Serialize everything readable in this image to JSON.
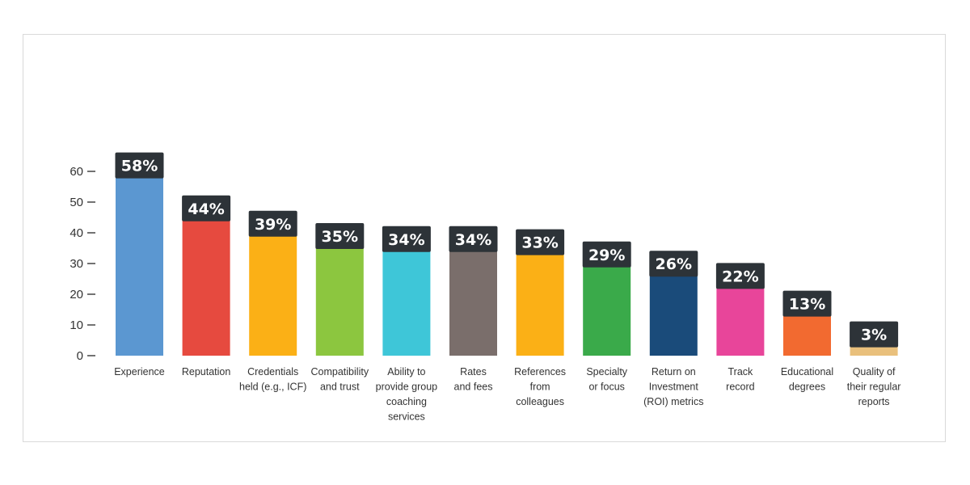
{
  "chart_data": {
    "type": "bar",
    "title": "",
    "xlabel": "",
    "ylabel": "",
    "ylim": [
      0,
      60
    ],
    "yticks": [
      0,
      10,
      20,
      30,
      40,
      50,
      60
    ],
    "grid": false,
    "categories": [
      "Experience",
      "Reputation",
      "Credentials held (e.g., ICF)",
      "Compatibility and trust",
      "Ability to provide group coaching services",
      "Rates and fees",
      "References from colleagues",
      "Specialty or focus",
      "Return on Investment (ROI) metrics",
      "Track record",
      "Educational degrees",
      "Quality of their regular reports"
    ],
    "category_lines": [
      [
        "Experience"
      ],
      [
        "Reputation"
      ],
      [
        "Credentials",
        "held (e.g., ICF)"
      ],
      [
        "Compatibility",
        "and trust"
      ],
      [
        "Ability to",
        "provide group",
        "coaching",
        "services"
      ],
      [
        "Rates",
        "and fees"
      ],
      [
        "References",
        "from",
        "colleagues"
      ],
      [
        "Specialty",
        "or focus"
      ],
      [
        "Return on",
        "Investment",
        "(ROI) metrics"
      ],
      [
        "Track",
        "record"
      ],
      [
        "Educational",
        "degrees"
      ],
      [
        "Quality of",
        "their regular",
        "reports"
      ]
    ],
    "values": [
      58,
      44,
      39,
      35,
      34,
      34,
      33,
      29,
      26,
      22,
      13,
      3
    ],
    "value_labels": [
      "58%",
      "44%",
      "39%",
      "35%",
      "34%",
      "34%",
      "33%",
      "29%",
      "26%",
      "22%",
      "13%",
      "3%"
    ],
    "colors": [
      "#5b97d1",
      "#e64a3f",
      "#fbb016",
      "#8cc63f",
      "#3ec6d8",
      "#7a6e6b",
      "#fbb016",
      "#3aaa4a",
      "#1a4b7a",
      "#e8459a",
      "#f26a30",
      "#e9c07c"
    ],
    "label_bg_color": "#2d3338"
  }
}
